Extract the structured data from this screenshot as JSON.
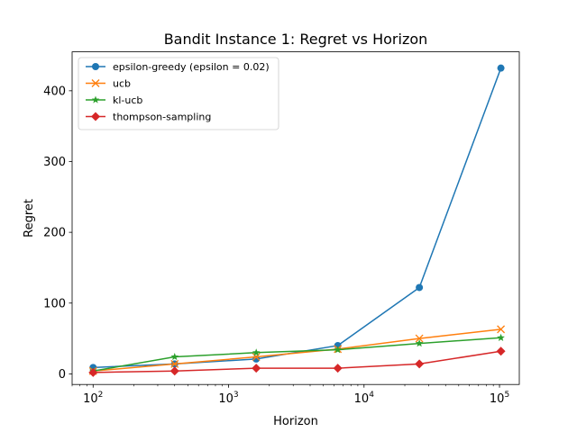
{
  "chart_data": {
    "type": "line",
    "title": "Bandit Instance 1: Regret vs Horizon",
    "xlabel": "Horizon",
    "ylabel": "Regret",
    "xscale": "log",
    "xlim": [
      70,
      140000
    ],
    "ylim": [
      -15,
      455
    ],
    "x": [
      100,
      400,
      1600,
      6400,
      25600,
      102400
    ],
    "x_ticks": [
      {
        "value": 100,
        "base": "10",
        "exp": "2"
      },
      {
        "value": 1000,
        "base": "10",
        "exp": "3"
      },
      {
        "value": 10000,
        "base": "10",
        "exp": "4"
      },
      {
        "value": 100000,
        "base": "10",
        "exp": "5"
      }
    ],
    "y_ticks": [
      0,
      100,
      200,
      300,
      400
    ],
    "grid": false,
    "legend_position": "top-left",
    "series": [
      {
        "name": "epsilon-greedy (epsilon = 0.02)",
        "color": "#1f77b4",
        "marker": "circle",
        "values": [
          9,
          14,
          21,
          40,
          122,
          432
        ]
      },
      {
        "name": "ucb",
        "color": "#ff7f0e",
        "marker": "x",
        "values": [
          4,
          14,
          24,
          35,
          50,
          63
        ]
      },
      {
        "name": "kl-ucb",
        "color": "#2ca02c",
        "marker": "star",
        "values": [
          4,
          24,
          30,
          34,
          43,
          51
        ]
      },
      {
        "name": "thompson-sampling",
        "color": "#d62728",
        "marker": "diamond",
        "values": [
          2,
          4,
          8,
          8,
          14,
          32
        ]
      }
    ]
  }
}
